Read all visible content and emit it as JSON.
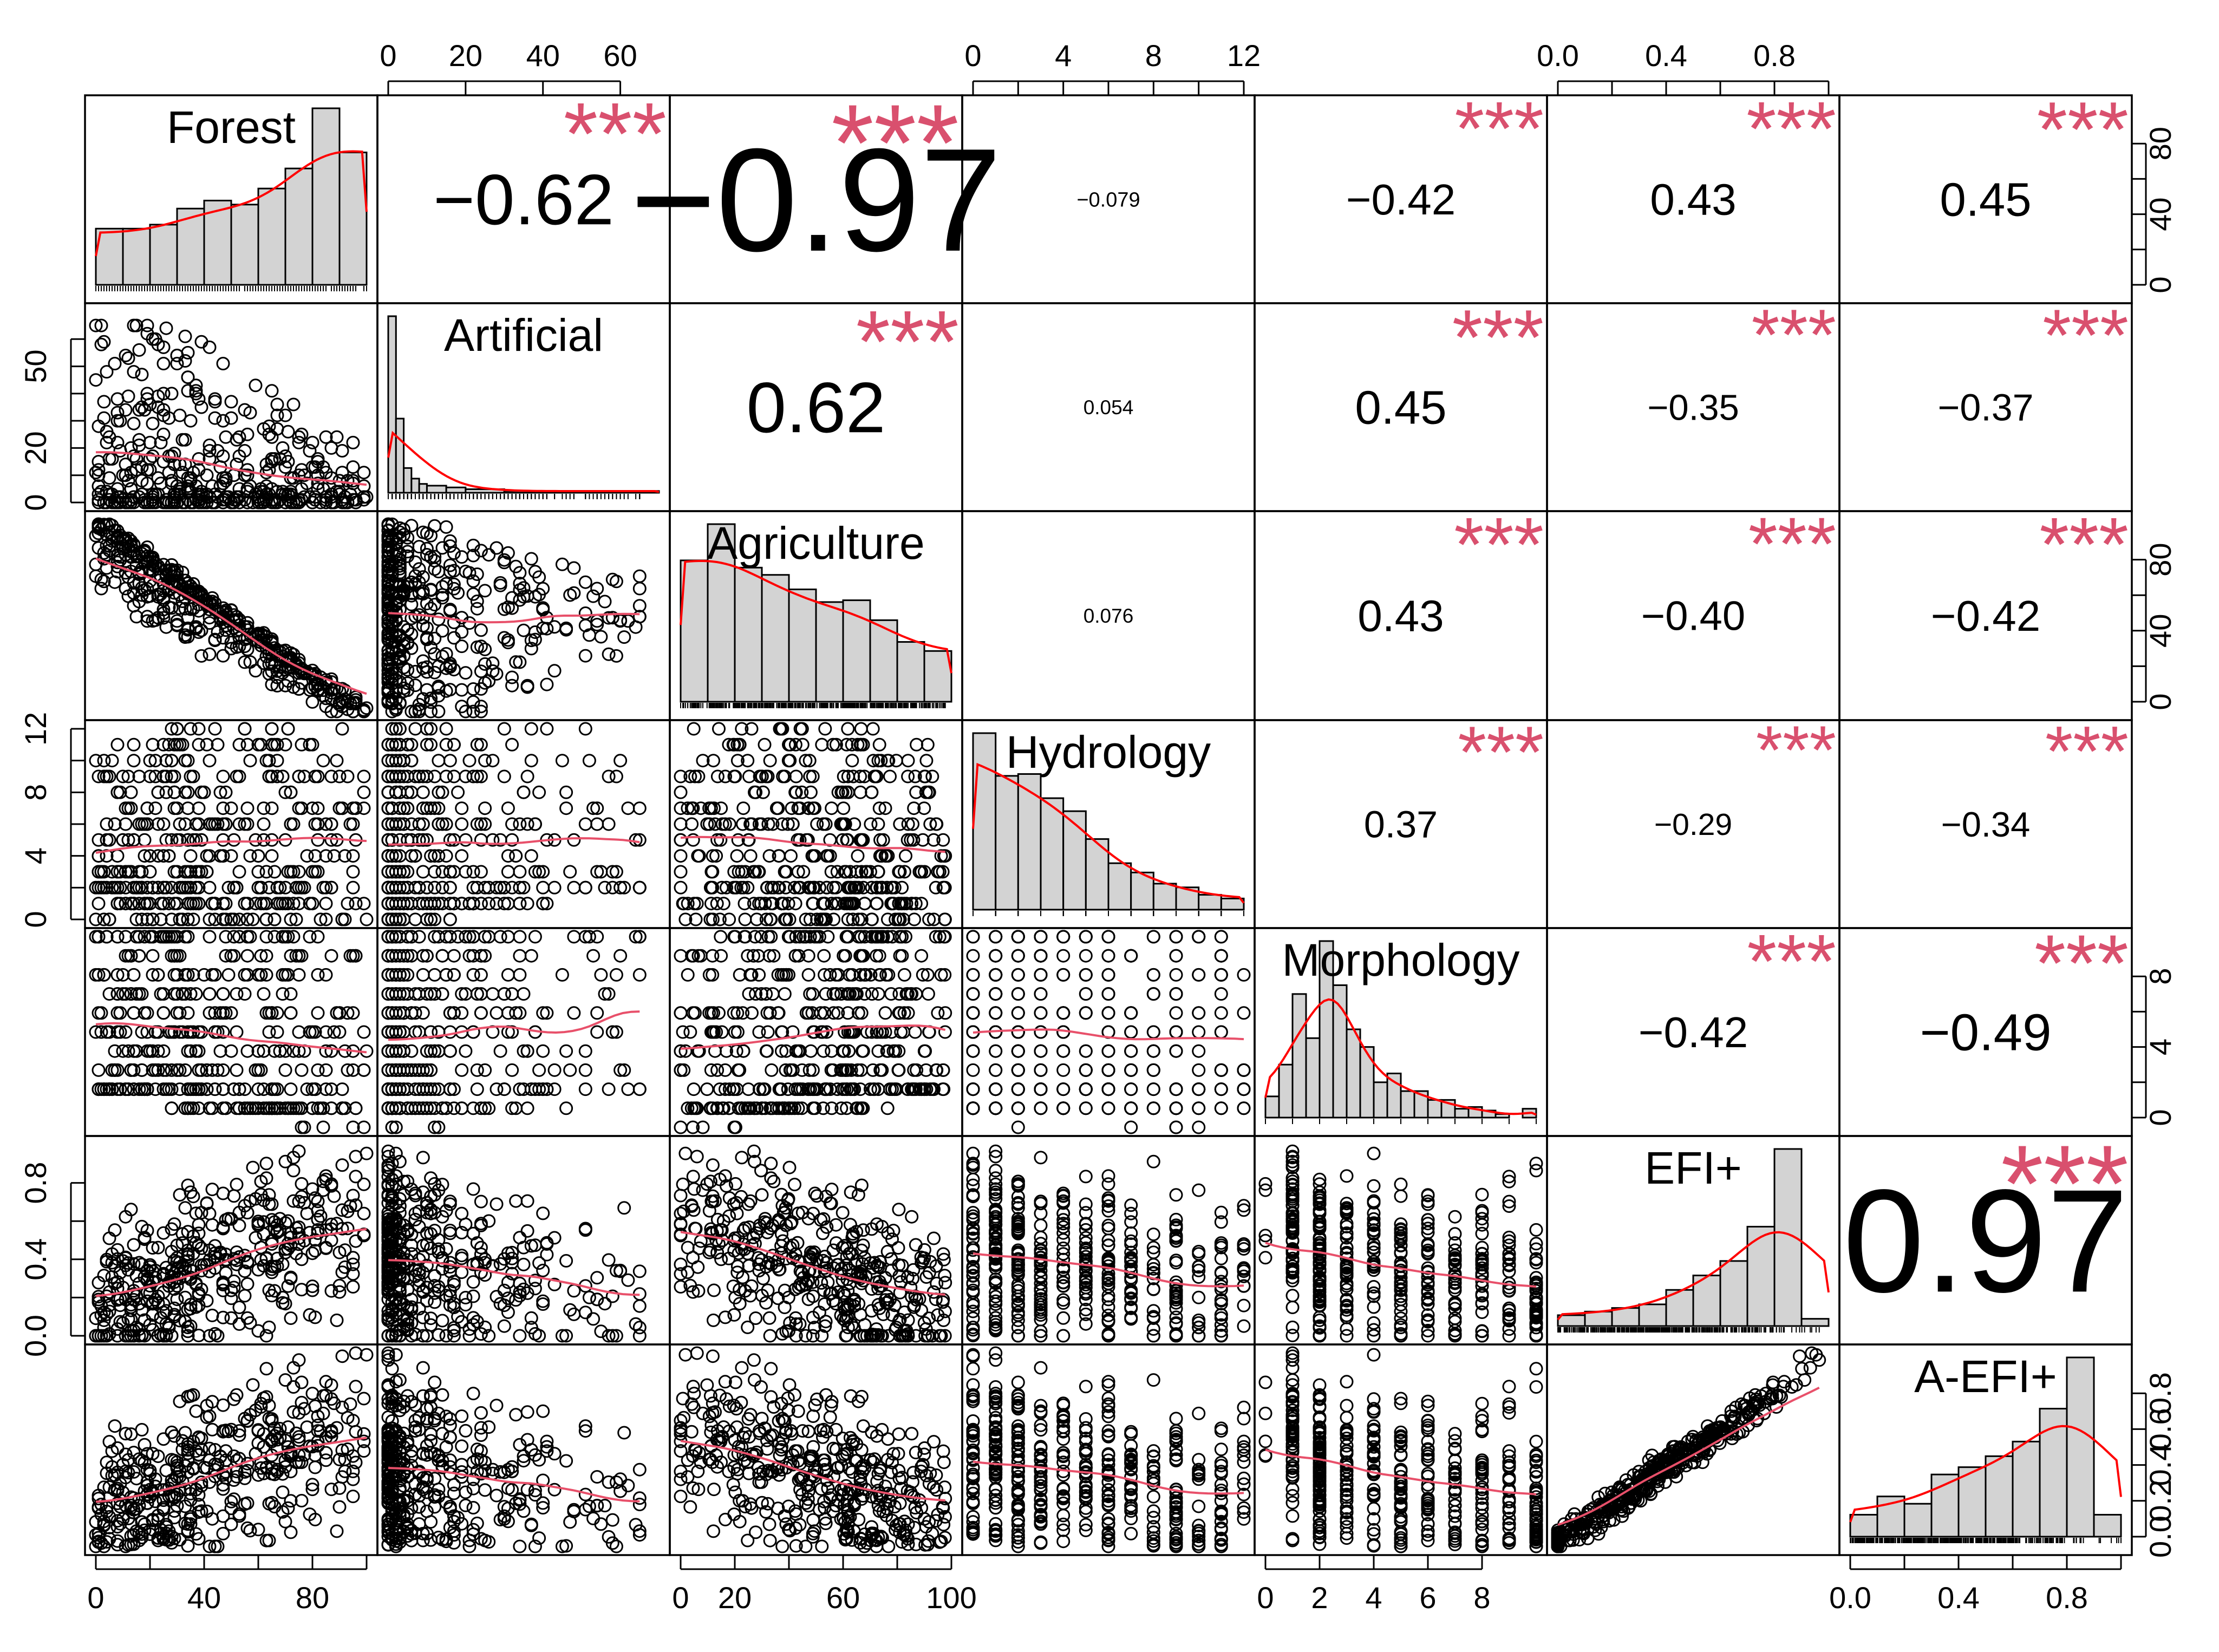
{
  "chart_data": {
    "type": "scatter",
    "title": "",
    "variables": [
      "Forest",
      "Artificial",
      "Agriculture",
      "Hydrology",
      "Morphology",
      "EFI+",
      "A-EFI+"
    ],
    "significance_marker": "***",
    "colors": {
      "ink": "#000000",
      "stars": "#d9506e",
      "smooth": "#e8506a",
      "density": "#ff0000",
      "bar_fill": "#d3d3d3"
    },
    "ranges": [
      [
        0,
        100
      ],
      [
        0,
        70
      ],
      [
        0,
        100
      ],
      [
        0,
        12
      ],
      [
        0,
        10
      ],
      [
        0,
        1
      ],
      [
        0,
        1
      ]
    ],
    "top_axes": [
      {
        "col": 1,
        "ticks": [
          0,
          20,
          40,
          60
        ],
        "labels": [
          "0",
          "20",
          "40",
          "60"
        ]
      },
      {
        "col": 3,
        "ticks": [
          0,
          2,
          4,
          6,
          8,
          10,
          12
        ],
        "labels": [
          "0",
          "",
          "4",
          "",
          "8",
          "",
          "12"
        ]
      },
      {
        "col": 5,
        "ticks": [
          0,
          0.2,
          0.4,
          0.6,
          0.8,
          1.0
        ],
        "labels": [
          "0.0",
          "",
          "0.4",
          "",
          "0.8",
          ""
        ]
      }
    ],
    "bottom_axes": [
      {
        "col": 0,
        "ticks": [
          0,
          20,
          40,
          60,
          80,
          100
        ],
        "labels": [
          "0",
          "",
          "40",
          "",
          "80",
          ""
        ]
      },
      {
        "col": 2,
        "ticks": [
          0,
          20,
          40,
          60,
          80,
          100
        ],
        "labels": [
          "0",
          "20",
          "",
          "60",
          "",
          "100"
        ]
      },
      {
        "col": 4,
        "ticks": [
          0,
          2,
          4,
          6,
          8
        ],
        "labels": [
          "0",
          "2",
          "4",
          "6",
          "8"
        ]
      },
      {
        "col": 6,
        "ticks": [
          0,
          0.2,
          0.4,
          0.6,
          0.8,
          1.0
        ],
        "labels": [
          "0.0",
          "",
          "0.4",
          "",
          "0.8",
          ""
        ]
      }
    ],
    "left_axes": [
      {
        "row": 1,
        "ticks": [
          0,
          10,
          20,
          30,
          40,
          50,
          60
        ],
        "labels": [
          "0",
          "",
          "20",
          "",
          "",
          "50",
          ""
        ]
      },
      {
        "row": 3,
        "ticks": [
          0,
          2,
          4,
          6,
          8,
          10,
          12
        ],
        "labels": [
          "0",
          "",
          "4",
          "",
          "8",
          "",
          "12"
        ]
      },
      {
        "row": 5,
        "ticks": [
          0,
          0.2,
          0.4,
          0.6,
          0.8
        ],
        "labels": [
          "0.0",
          "",
          "0.4",
          "",
          "0.8"
        ]
      }
    ],
    "right_axes": [
      {
        "row": 0,
        "max": 100,
        "ticks": [
          0,
          20,
          40,
          60,
          80
        ],
        "labels": [
          "0",
          "",
          "40",
          "",
          "80"
        ]
      },
      {
        "row": 2,
        "max": 100,
        "ticks": [
          0,
          20,
          40,
          60,
          80
        ],
        "labels": [
          "0",
          "",
          "40",
          "",
          "80"
        ]
      },
      {
        "row": 4,
        "max": 10,
        "ticks": [
          0,
          2,
          4,
          6,
          8
        ],
        "labels": [
          "0",
          "",
          "4",
          "",
          "8"
        ]
      },
      {
        "row": 6,
        "max": 1,
        "ticks": [
          0,
          0.2,
          0.4,
          0.6,
          0.8
        ],
        "labels": [
          "0.0",
          "0.2",
          "0.4",
          "0.6",
          "0.8"
        ]
      }
    ],
    "correlations": [
      {
        "row": 0,
        "col": 1,
        "label": "−0.62",
        "value": -0.62
      },
      {
        "row": 0,
        "col": 2,
        "label": "−0.97",
        "value": -0.97
      },
      {
        "row": 0,
        "col": 3,
        "label": "−0.079",
        "value": -0.079
      },
      {
        "row": 0,
        "col": 4,
        "label": "−0.42",
        "value": -0.42
      },
      {
        "row": 0,
        "col": 5,
        "label": "0.43",
        "value": 0.43
      },
      {
        "row": 0,
        "col": 6,
        "label": "0.45",
        "value": 0.45
      },
      {
        "row": 1,
        "col": 2,
        "label": "0.62",
        "value": 0.62
      },
      {
        "row": 1,
        "col": 3,
        "label": "0.054",
        "value": 0.054
      },
      {
        "row": 1,
        "col": 4,
        "label": "0.45",
        "value": 0.45
      },
      {
        "row": 1,
        "col": 5,
        "label": "−0.35",
        "value": -0.35
      },
      {
        "row": 1,
        "col": 6,
        "label": "−0.37",
        "value": -0.37
      },
      {
        "row": 2,
        "col": 3,
        "label": "0.076",
        "value": 0.076
      },
      {
        "row": 2,
        "col": 4,
        "label": "0.43",
        "value": 0.43
      },
      {
        "row": 2,
        "col": 5,
        "label": "−0.40",
        "value": -0.4
      },
      {
        "row": 2,
        "col": 6,
        "label": "−0.42",
        "value": -0.42
      },
      {
        "row": 3,
        "col": 4,
        "label": "0.37",
        "value": 0.37
      },
      {
        "row": 3,
        "col": 5,
        "label": "−0.29",
        "value": -0.29
      },
      {
        "row": 3,
        "col": 6,
        "label": "−0.34",
        "value": -0.34
      },
      {
        "row": 4,
        "col": 5,
        "label": "−0.42",
        "value": -0.42
      },
      {
        "row": 4,
        "col": 6,
        "label": "−0.49",
        "value": -0.49
      },
      {
        "row": 5,
        "col": 6,
        "label": "0.97",
        "value": 0.97
      }
    ],
    "significant_pairs": [
      [
        0,
        1
      ],
      [
        0,
        2
      ],
      [
        0,
        4
      ],
      [
        0,
        5
      ],
      [
        0,
        6
      ],
      [
        1,
        2
      ],
      [
        1,
        4
      ],
      [
        1,
        5
      ],
      [
        1,
        6
      ],
      [
        2,
        4
      ],
      [
        2,
        5
      ],
      [
        2,
        6
      ],
      [
        3,
        4
      ],
      [
        3,
        5
      ],
      [
        3,
        6
      ],
      [
        4,
        5
      ],
      [
        4,
        6
      ],
      [
        5,
        6
      ]
    ],
    "histograms": [
      {
        "var": "Forest",
        "bins": [
          0,
          10,
          20,
          30,
          40,
          50,
          60,
          70,
          80,
          90,
          100
        ],
        "counts": [
          28,
          28,
          30,
          38,
          42,
          40,
          48,
          58,
          88,
          66
        ]
      },
      {
        "var": "Artificial",
        "bins": [
          0,
          2,
          4,
          6,
          8,
          10,
          15,
          20,
          30,
          40,
          50,
          60,
          70
        ],
        "counts": [
          100,
          42,
          14,
          8,
          5,
          4,
          3,
          2,
          1,
          1,
          1,
          1
        ]
      },
      {
        "var": "Agriculture",
        "bins": [
          0,
          10,
          20,
          30,
          40,
          50,
          60,
          70,
          80,
          90,
          100
        ],
        "counts": [
          78,
          98,
          74,
          70,
          62,
          55,
          56,
          45,
          33,
          28
        ]
      },
      {
        "var": "Hydrology",
        "bins": [
          0,
          1,
          2,
          3,
          4,
          5,
          6,
          7,
          8,
          9,
          10,
          11,
          12
        ],
        "counts": [
          95,
          72,
          73,
          60,
          53,
          38,
          25,
          20,
          14,
          12,
          8,
          6
        ]
      },
      {
        "var": "Morphology",
        "bins": [
          0,
          0.5,
          1,
          1.5,
          2,
          2.5,
          3,
          3.5,
          4,
          4.5,
          5,
          5.5,
          6,
          6.5,
          7,
          7.5,
          8,
          8.5,
          9,
          9.5,
          10
        ],
        "counts": [
          12,
          30,
          70,
          45,
          100,
          75,
          50,
          40,
          20,
          25,
          15,
          15,
          10,
          10,
          5,
          6,
          4,
          2,
          0,
          5
        ]
      },
      {
        "var": "EFI+",
        "bins": [
          0,
          0.1,
          0.2,
          0.3,
          0.4,
          0.5,
          0.6,
          0.7,
          0.8,
          0.9,
          1.0
        ],
        "counts": [
          6,
          8,
          10,
          12,
          20,
          28,
          36,
          55,
          98,
          4
        ]
      },
      {
        "var": "A-EFI+",
        "bins": [
          0,
          0.1,
          0.2,
          0.3,
          0.4,
          0.5,
          0.6,
          0.7,
          0.8,
          0.9,
          1.0
        ],
        "counts": [
          12,
          22,
          18,
          34,
          38,
          44,
          52,
          70,
          98,
          12
        ]
      }
    ]
  }
}
